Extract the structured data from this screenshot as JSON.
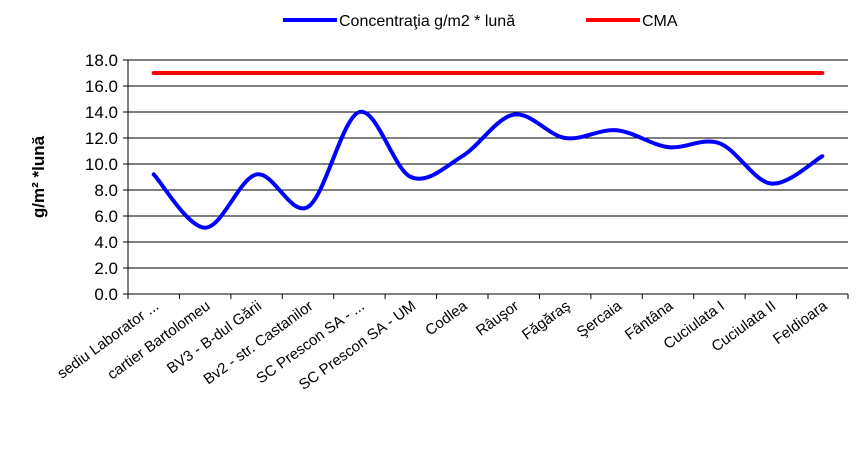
{
  "chart_data": {
    "type": "line",
    "categories": [
      "sediu Laborator ...",
      "cartier Bartolomeu",
      "BV3 - B-dul Gării",
      "Bv2 - str. Castanilor",
      "SC Prescon SA - ...",
      "SC Prescon SA - UM",
      "Codlea",
      "Râuşor",
      "Făgăraş",
      "Şercaia",
      "Fântâna",
      "Cuciulata I",
      "Cuciulata II",
      "Feldioara"
    ],
    "series": [
      {
        "name": "Concentraţia g/m2 * lună",
        "color": "#0000ff",
        "smooth": true,
        "values": [
          9.2,
          5.1,
          9.2,
          6.7,
          14.0,
          9.0,
          10.6,
          13.8,
          12.0,
          12.6,
          11.3,
          11.6,
          8.5,
          10.6
        ]
      },
      {
        "name": "CMA",
        "color": "#ff0000",
        "smooth": false,
        "values": [
          17,
          17,
          17,
          17,
          17,
          17,
          17,
          17,
          17,
          17,
          17,
          17,
          17,
          17
        ]
      }
    ],
    "ylabel": "g/m² *lună",
    "xlabel": "",
    "ylim": [
      0,
      18
    ],
    "yticks": [
      "0.0",
      "2.0",
      "4.0",
      "6.0",
      "8.0",
      "10.0",
      "12.0",
      "14.0",
      "16.0",
      "18.0"
    ],
    "grid": true,
    "legend_position": "top-center"
  }
}
